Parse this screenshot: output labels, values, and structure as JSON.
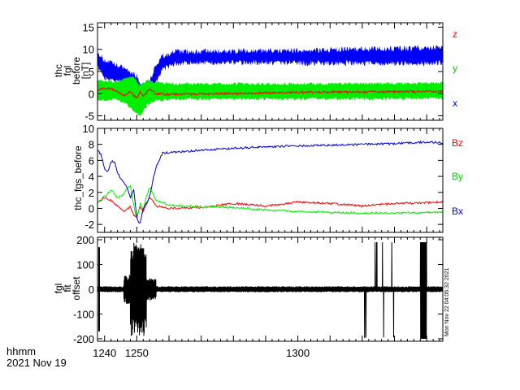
{
  "chart_data": [
    {
      "type": "line",
      "ylabel_lines": [
        "thc",
        "fgl",
        "before",
        "[nT]"
      ],
      "ylim": [
        -6,
        16
      ],
      "yticks": [
        -5,
        0,
        5,
        10,
        15
      ],
      "xlim": [
        1237.8,
        1345.0
      ],
      "series": [
        {
          "name": "z",
          "color": "#ff0000"
        },
        {
          "name": "y",
          "color": "#00ee00"
        },
        {
          "name": "x",
          "color": "#0000ff"
        }
      ]
    },
    {
      "type": "line",
      "ylabel_lines": [
        "thc_fgs_before"
      ],
      "ylim": [
        -3,
        10
      ],
      "yticks": [
        -2,
        0,
        2,
        4,
        6,
        8,
        10
      ],
      "xlim": [
        1237.8,
        1345.0
      ],
      "series": [
        {
          "name": "Bz",
          "color": "#ff0000",
          "x": [
            1238,
            1240,
            1242,
            1244,
            1246,
            1248,
            1249,
            1250,
            1251,
            1252,
            1253,
            1254,
            1256,
            1260,
            1270,
            1280,
            1290,
            1300,
            1310,
            1320,
            1330,
            1340,
            1345
          ],
          "values": [
            0.8,
            1.3,
            1.0,
            0.3,
            -0.3,
            0.2,
            -0.8,
            -1.0,
            0.2,
            -0.5,
            0.6,
            1.4,
            0.3,
            0.0,
            0.1,
            0.6,
            0.3,
            0.8,
            0.6,
            0.3,
            0.6,
            0.7,
            0.8
          ]
        },
        {
          "name": "By",
          "color": "#00ee00",
          "x": [
            1238,
            1240,
            1242,
            1244,
            1246,
            1247,
            1248,
            1249,
            1250,
            1251,
            1252,
            1253,
            1254,
            1256,
            1260,
            1270,
            1280,
            1290,
            1300,
            1310,
            1320,
            1330,
            1340,
            1345
          ],
          "values": [
            0.8,
            1.5,
            2.3,
            1.3,
            1.8,
            2.5,
            2.8,
            0.5,
            -1.5,
            0.6,
            -0.2,
            1.6,
            2.6,
            1.0,
            0.4,
            0.2,
            0.1,
            -0.2,
            -0.4,
            -0.5,
            -0.6,
            -0.6,
            -0.5,
            -0.5
          ]
        },
        {
          "name": "Bx",
          "color": "#0000cc",
          "x": [
            1238,
            1239,
            1240,
            1241,
            1242,
            1243,
            1244,
            1245,
            1246,
            1247,
            1248,
            1249,
            1250,
            1251,
            1252,
            1253,
            1254,
            1255,
            1256,
            1258,
            1260,
            1265,
            1270,
            1280,
            1290,
            1300,
            1310,
            1320,
            1330,
            1340,
            1345
          ],
          "values": [
            7.2,
            6.6,
            5.0,
            4.6,
            5.8,
            5.9,
            4.5,
            3.7,
            3.2,
            2.6,
            1.3,
            2.5,
            -1.2,
            -2.0,
            0.0,
            0.6,
            1.5,
            3.5,
            5.2,
            6.9,
            7.0,
            7.1,
            7.3,
            7.5,
            7.7,
            7.8,
            7.9,
            8.0,
            8.1,
            8.3,
            8.2
          ]
        }
      ]
    },
    {
      "type": "line",
      "ylabel_lines": [
        "fgl",
        "fit",
        "offset"
      ],
      "ylim": [
        -210,
        210
      ],
      "yticks": [
        -200,
        -100,
        0,
        100,
        200
      ],
      "xlim": [
        1237.8,
        1345.0
      ],
      "xticks": [
        1240,
        1250,
        1300
      ],
      "series": [
        {
          "name": "",
          "color": "#000000"
        }
      ]
    }
  ],
  "xaxis_label": "hhmm",
  "date_label": "2021 Nov 19",
  "timestamp": "Mon Nov 22 04:06:32 2021"
}
